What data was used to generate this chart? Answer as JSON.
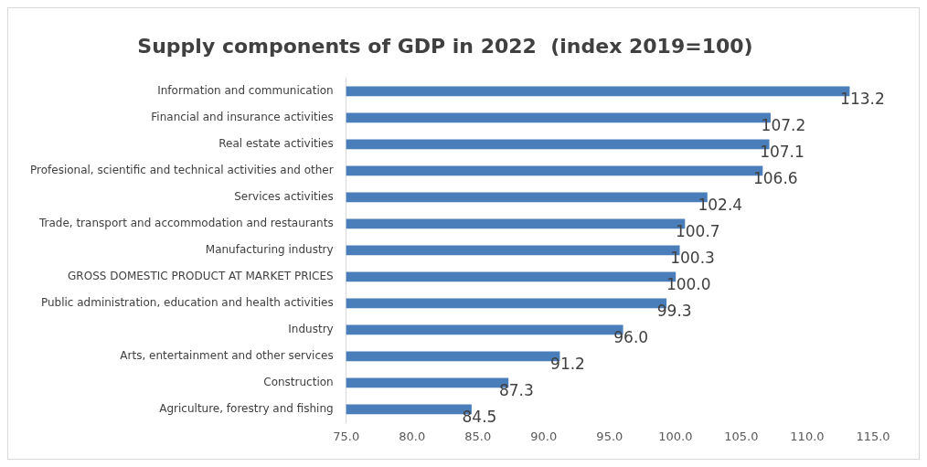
{
  "chart_data": {
    "type": "bar",
    "orientation": "horizontal",
    "title": "Supply components of GDP in 2022  (index 2019=100)",
    "categories": [
      "Information and communication",
      "Financial and insurance activities",
      "Real estate activities",
      "Profesional, scientific and technical activities and other",
      "Services activities",
      "Trade, transport and accommodation and restaurants",
      "Manufacturing industry",
      "GROSS DOMESTIC PRODUCT AT MARKET PRICES",
      "Public administration, education and health activities",
      "Industry",
      "Arts, entertainment and other services",
      "Construction",
      "Agriculture, forestry and fishing"
    ],
    "values": [
      113.2,
      107.2,
      107.1,
      106.6,
      102.4,
      100.7,
      100.3,
      100.0,
      99.3,
      96.0,
      91.2,
      87.3,
      84.5
    ],
    "value_labels": [
      "113.2",
      "107.2",
      "107.1",
      "106.6",
      "102.4",
      "100.7",
      "100.3",
      "100.0",
      "99.3",
      "96.0",
      "91.2",
      "87.3",
      "84.5"
    ],
    "color": "#4a7ebb",
    "xlim": [
      75,
      115
    ],
    "xticks": [
      {
        "value": 75,
        "label": "75.0"
      },
      {
        "value": 80,
        "label": "80.0"
      },
      {
        "value": 85,
        "label": "85.0"
      },
      {
        "value": 90,
        "label": "90.0"
      },
      {
        "value": 95,
        "label": "95.0"
      },
      {
        "value": 100,
        "label": "100.0"
      },
      {
        "value": 105,
        "label": "105.0"
      },
      {
        "value": 110,
        "label": "110.0"
      },
      {
        "value": 115,
        "label": "115.0"
      }
    ],
    "grid": false,
    "legend": false
  }
}
